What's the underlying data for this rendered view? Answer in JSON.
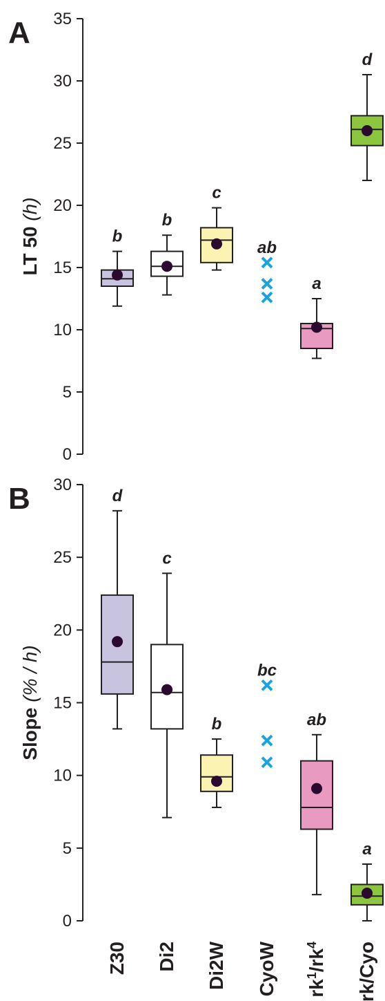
{
  "chart_data": [
    {
      "type": "box",
      "panel_label": "A",
      "ylabel": "LT 50",
      "ylabel_unit": "(h)",
      "ylim": [
        0,
        35
      ],
      "yticks": [
        0,
        5,
        10,
        15,
        20,
        25,
        30,
        35
      ],
      "categories": [
        "Z30",
        "Di2",
        "Di2W",
        "CyoW",
        "rk1/rk4",
        "rk/Cyo"
      ],
      "letters": [
        "b",
        "b",
        "c",
        "ab",
        "a",
        "d"
      ],
      "boxes": [
        {
          "category": "Z30",
          "whisker_low": 11.9,
          "q1": 13.5,
          "median": 14.1,
          "q3": 14.8,
          "whisker_high": 16.3,
          "mean": 14.4,
          "color": "#c8c4e0"
        },
        {
          "category": "Di2",
          "whisker_low": 12.8,
          "q1": 14.3,
          "median": 15.1,
          "q3": 16.3,
          "whisker_high": 17.6,
          "mean": 15.1,
          "color": "#ffffff"
        },
        {
          "category": "Di2W",
          "whisker_low": 14.8,
          "q1": 15.4,
          "median": 17.2,
          "q3": 18.2,
          "whisker_high": 19.8,
          "mean": 16.9,
          "color": "#fbf3b2"
        },
        {
          "category": "CyoW",
          "points": [
            15.4,
            13.7,
            12.6
          ],
          "color": "#1aa3dc"
        },
        {
          "category": "rk1/rk4",
          "whisker_low": 7.7,
          "q1": 8.5,
          "median": 10.1,
          "q3": 10.5,
          "whisker_high": 12.5,
          "mean": 10.2,
          "color": "#e99ac0"
        },
        {
          "category": "rk/Cyo",
          "whisker_low": 22.0,
          "q1": 24.8,
          "median": 26.1,
          "q3": 27.2,
          "whisker_high": 30.5,
          "mean": 26.0,
          "color": "#8cc63f"
        }
      ]
    },
    {
      "type": "box",
      "panel_label": "B",
      "ylabel": "Slope",
      "ylabel_unit": "(% / h)",
      "ylim": [
        0,
        30
      ],
      "yticks": [
        0,
        5,
        10,
        15,
        20,
        25,
        30
      ],
      "categories": [
        "Z30",
        "Di2",
        "Di2W",
        "CyoW",
        "rk1/rk4",
        "rk/Cyo"
      ],
      "letters": [
        "d",
        "c",
        "b",
        "bc",
        "ab",
        "a"
      ],
      "boxes": [
        {
          "category": "Z30",
          "whisker_low": 13.2,
          "q1": 15.6,
          "median": 17.8,
          "q3": 22.4,
          "whisker_high": 28.2,
          "mean": 19.2,
          "color": "#c8c4e0"
        },
        {
          "category": "Di2",
          "whisker_low": 7.1,
          "q1": 13.2,
          "median": 15.7,
          "q3": 19.0,
          "whisker_high": 23.9,
          "mean": 15.9,
          "color": "#ffffff"
        },
        {
          "category": "Di2W",
          "whisker_low": 7.8,
          "q1": 8.9,
          "median": 9.9,
          "q3": 11.4,
          "whisker_high": 12.5,
          "mean": 9.6,
          "color": "#fbf3b2"
        },
        {
          "category": "CyoW",
          "points": [
            16.2,
            12.4,
            10.9
          ],
          "color": "#1aa3dc"
        },
        {
          "category": "rk1/rk4",
          "whisker_low": 1.8,
          "q1": 6.3,
          "median": 7.8,
          "q3": 11.0,
          "whisker_high": 12.8,
          "mean": 9.1,
          "color": "#e99ac0"
        },
        {
          "category": "rk/Cyo",
          "whisker_low": 0.0,
          "q1": 1.1,
          "median": 1.7,
          "q3": 2.5,
          "whisker_high": 3.9,
          "mean": 1.9,
          "color": "#8cc63f"
        }
      ]
    }
  ],
  "x_labels": [
    {
      "base": "Z30"
    },
    {
      "base": "Di2"
    },
    {
      "base": "Di2W"
    },
    {
      "base": "CyoW"
    },
    {
      "base": "rk",
      "sup1": "1",
      "mid": "/rk",
      "sup2": "4"
    },
    {
      "base": "rk/Cyo"
    }
  ],
  "colors": {
    "axis": "#231f20",
    "mean_dot": "#2a0a2e",
    "cross": "#1aa3dc"
  }
}
